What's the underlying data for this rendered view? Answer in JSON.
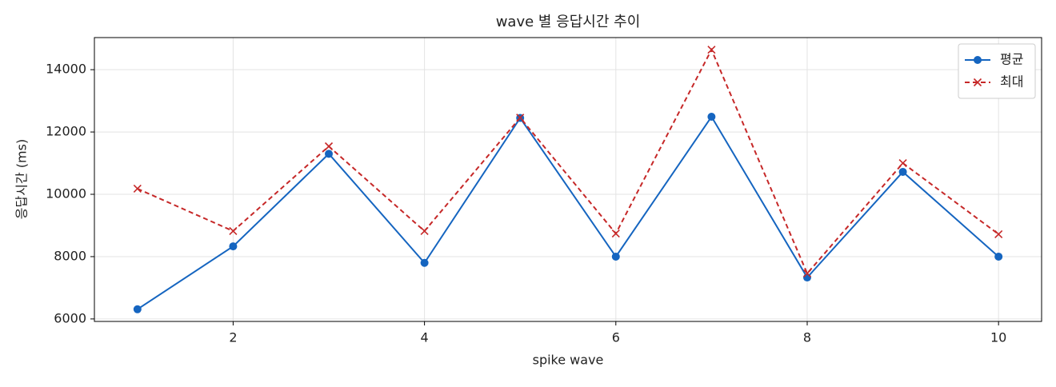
{
  "chart_data": {
    "type": "line",
    "title": "wave 별 응답시간 추이",
    "x_label": "spike wave",
    "y_label": "응답시간 (ms)",
    "x": [
      1,
      2,
      3,
      4,
      5,
      6,
      7,
      8,
      9,
      10
    ],
    "series": [
      {
        "name": "평균",
        "color": "#1565c0",
        "marker": "circle",
        "linestyle": "solid",
        "values": [
          6310,
          8330,
          11300,
          7800,
          12450,
          8000,
          12490,
          7330,
          10720,
          8000
        ]
      },
      {
        "name": "최대",
        "color": "#c62828",
        "marker": "x",
        "linestyle": "dashed",
        "values": [
          10180,
          8820,
          11540,
          8820,
          12460,
          8740,
          14640,
          7460,
          11000,
          8720
        ]
      }
    ],
    "xlim": [
      0.55,
      10.45
    ],
    "xticks": [
      2,
      4,
      6,
      8,
      10
    ],
    "ylim": [
      5920,
      15030
    ],
    "yticks": [
      6000,
      8000,
      10000,
      12000,
      14000
    ],
    "grid": true,
    "legend": "upper right"
  }
}
